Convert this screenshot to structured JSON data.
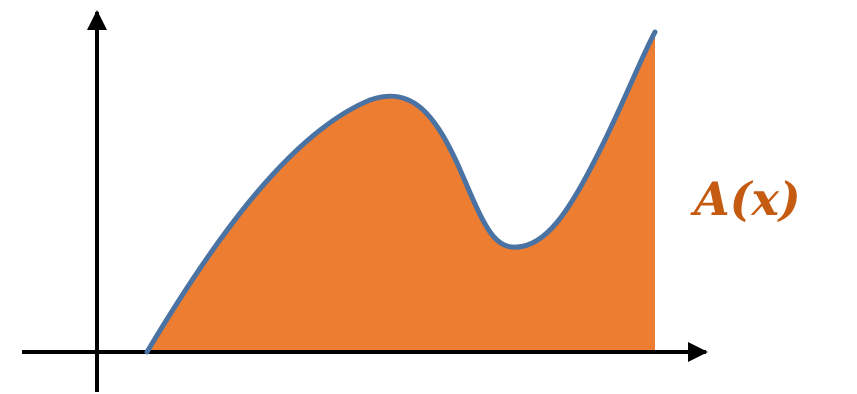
{
  "label": {
    "text": "A(x)"
  },
  "colors": {
    "area_fill": "#ED7D31",
    "curve": "#4A72A3",
    "axes": "#000000",
    "label": "#C55A11"
  }
}
